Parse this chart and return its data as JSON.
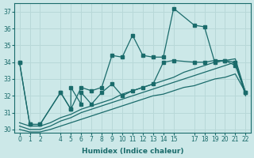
{
  "xlabel": "Humidex (Indice chaleur)",
  "xlim": [
    -0.5,
    22.5
  ],
  "ylim": [
    29.8,
    37.5
  ],
  "yticks": [
    30,
    31,
    32,
    33,
    34,
    35,
    36,
    37
  ],
  "xticks": [
    0,
    1,
    2,
    4,
    5,
    6,
    7,
    8,
    9,
    10,
    11,
    12,
    13,
    14,
    15,
    17,
    18,
    19,
    20,
    21,
    22
  ],
  "bg_color": "#cce8e8",
  "grid_color": "#b8d8d8",
  "line_color": "#1a6b6b",
  "line_width": 0.9,
  "marker_size": 2.2,
  "series1_x": [
    0,
    1,
    2,
    4,
    5,
    6,
    7,
    8,
    9,
    10,
    11,
    12,
    13,
    14,
    15,
    17,
    18,
    19,
    20,
    21,
    22
  ],
  "series1_y": [
    34.0,
    30.3,
    30.3,
    32.2,
    31.2,
    32.5,
    32.3,
    32.5,
    34.4,
    34.3,
    35.6,
    34.4,
    34.3,
    34.3,
    37.2,
    36.2,
    36.1,
    34.0,
    34.1,
    33.8,
    32.2
  ],
  "series2_x": [
    0,
    1,
    2,
    4,
    5,
    5,
    6,
    6,
    7,
    8,
    9,
    10,
    11,
    12,
    13,
    14,
    15,
    17,
    18,
    19,
    20,
    21,
    22
  ],
  "series2_y": [
    34.0,
    30.3,
    30.3,
    32.2,
    31.2,
    32.5,
    31.5,
    32.2,
    31.5,
    32.2,
    32.7,
    32.0,
    32.3,
    32.5,
    32.7,
    34.0,
    34.1,
    34.0,
    34.0,
    34.1,
    34.1,
    34.0,
    32.2
  ],
  "series3_x": [
    0,
    1,
    2,
    3,
    4,
    5,
    6,
    7,
    8,
    9,
    10,
    11,
    12,
    13,
    14,
    15,
    16,
    17,
    18,
    19,
    20,
    21,
    22
  ],
  "series3_y": [
    30.4,
    30.2,
    30.2,
    30.4,
    30.7,
    30.9,
    31.2,
    31.4,
    31.6,
    31.8,
    32.1,
    32.3,
    32.5,
    32.7,
    32.9,
    33.1,
    33.4,
    33.6,
    33.8,
    34.0,
    34.1,
    34.2,
    32.2
  ],
  "series4_x": [
    0,
    1,
    2,
    3,
    4,
    5,
    6,
    7,
    8,
    9,
    10,
    11,
    12,
    13,
    14,
    15,
    16,
    17,
    18,
    19,
    20,
    21,
    22
  ],
  "series4_y": [
    30.2,
    30.0,
    30.0,
    30.2,
    30.5,
    30.7,
    31.0,
    31.2,
    31.4,
    31.6,
    31.8,
    32.0,
    32.2,
    32.4,
    32.6,
    32.8,
    33.0,
    33.2,
    33.4,
    33.6,
    33.8,
    34.0,
    32.0
  ],
  "series5_x": [
    0,
    1,
    2,
    3,
    4,
    5,
    6,
    7,
    8,
    9,
    10,
    11,
    12,
    13,
    14,
    15,
    16,
    17,
    18,
    19,
    20,
    21,
    22
  ],
  "series5_y": [
    30.0,
    29.85,
    29.85,
    30.0,
    30.2,
    30.4,
    30.6,
    30.8,
    31.0,
    31.2,
    31.4,
    31.6,
    31.8,
    32.0,
    32.1,
    32.3,
    32.5,
    32.6,
    32.8,
    33.0,
    33.1,
    33.3,
    32.2
  ]
}
